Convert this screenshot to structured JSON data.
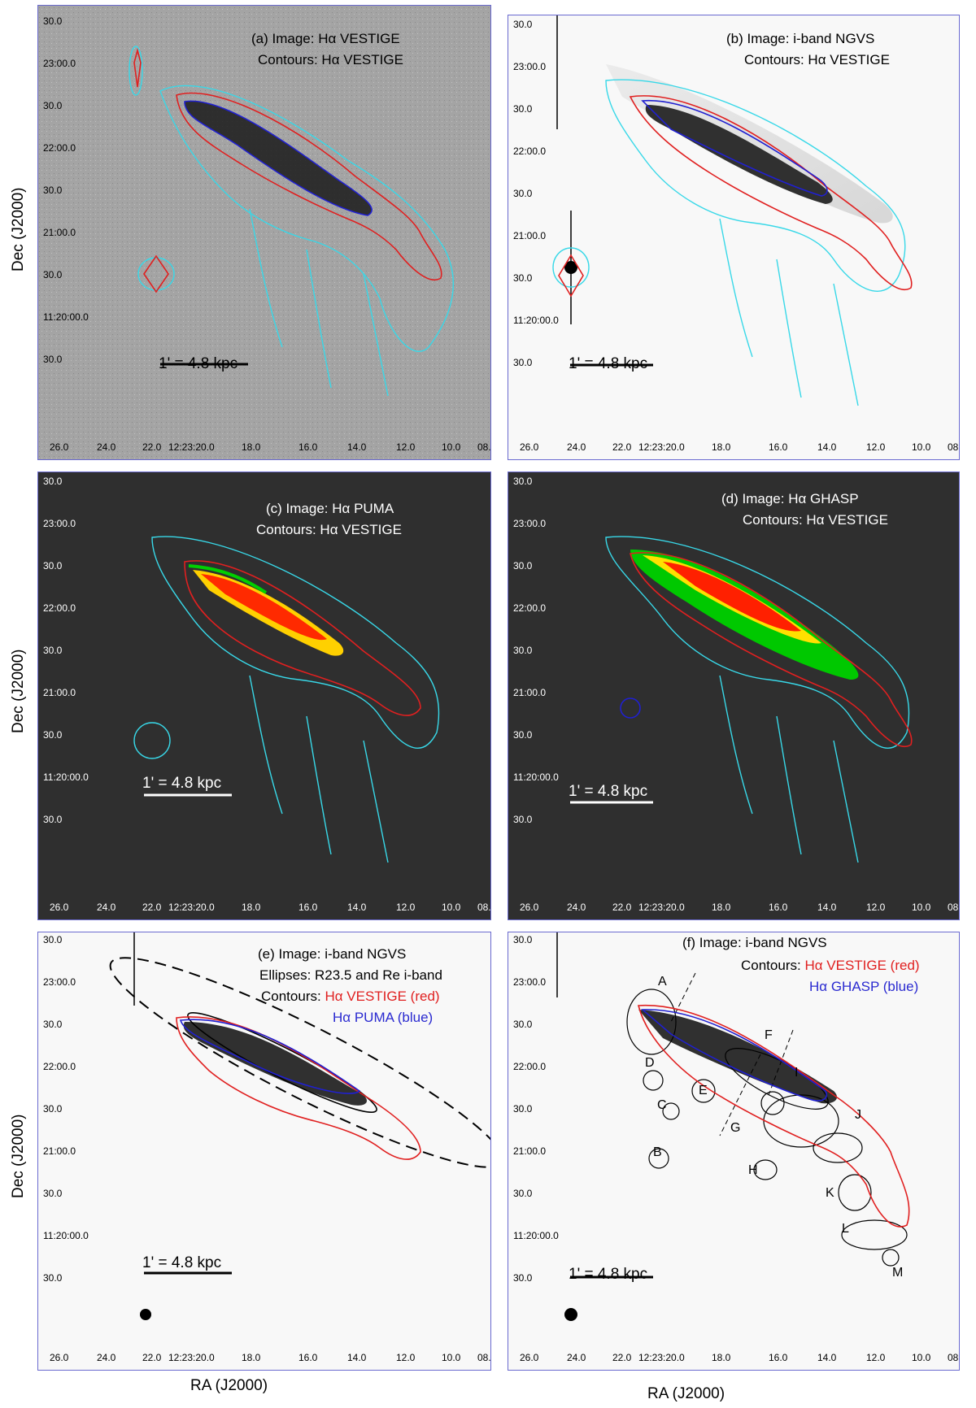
{
  "axes": {
    "ylabel": "Dec (J2000)",
    "xlabel": "RA (J2000)",
    "dec_ticks": [
      "30.0",
      "23:00.0",
      "30.0",
      "22:00.0",
      "30.0",
      "21:00.0",
      "30.0",
      "11:20:00.0",
      "30.0"
    ],
    "ra_ticks": [
      "26.0",
      "24.0",
      "22.0",
      "12:23:20.0",
      "18.0",
      "16.0",
      "14.0",
      "12.0",
      "10.0",
      "08."
    ]
  },
  "scale_bar": "1' = 4.8 kpc",
  "colors": {
    "contour_cyan": "#38d8e8",
    "contour_red": "#e02020",
    "contour_blue": "#2020d0",
    "background_gray": "#a8a8a8",
    "background_dark": "#2f2f2f",
    "background_light": "#f8f8f8"
  },
  "panels": {
    "a": {
      "line1": "(a)  Image: Hα VESTIGE",
      "line2": "Contours: Hα VESTIGE"
    },
    "b": {
      "line1": "(b) Image: i-band NGVS",
      "line2": "Contours: Hα VESTIGE"
    },
    "c": {
      "line1": "(c) Image: Hα PUMA",
      "line2": "Contours: Hα VESTIGE"
    },
    "d": {
      "line1": "(d) Image: Hα GHASP",
      "line2": "Contours: Hα VESTIGE"
    },
    "e": {
      "line1": "(e) Image: i-band NGVS",
      "line2": "Ellipses: R23.5 and Re i-band",
      "line3_prefix": "Contours:  ",
      "line3_red": "Hα VESTIGE (red)",
      "line4_blue": "Hα PUMA (blue)"
    },
    "f": {
      "line1": "(f) Image: i-band NGVS",
      "line2_prefix": "Contours: ",
      "line2_red": "Hα VESTIGE (red)",
      "line3_blue": "Hα GHASP (blue)",
      "regions": [
        "A",
        "B",
        "C",
        "D",
        "E",
        "F",
        "G",
        "H",
        "I",
        "J",
        "K",
        "L",
        "M"
      ]
    }
  }
}
